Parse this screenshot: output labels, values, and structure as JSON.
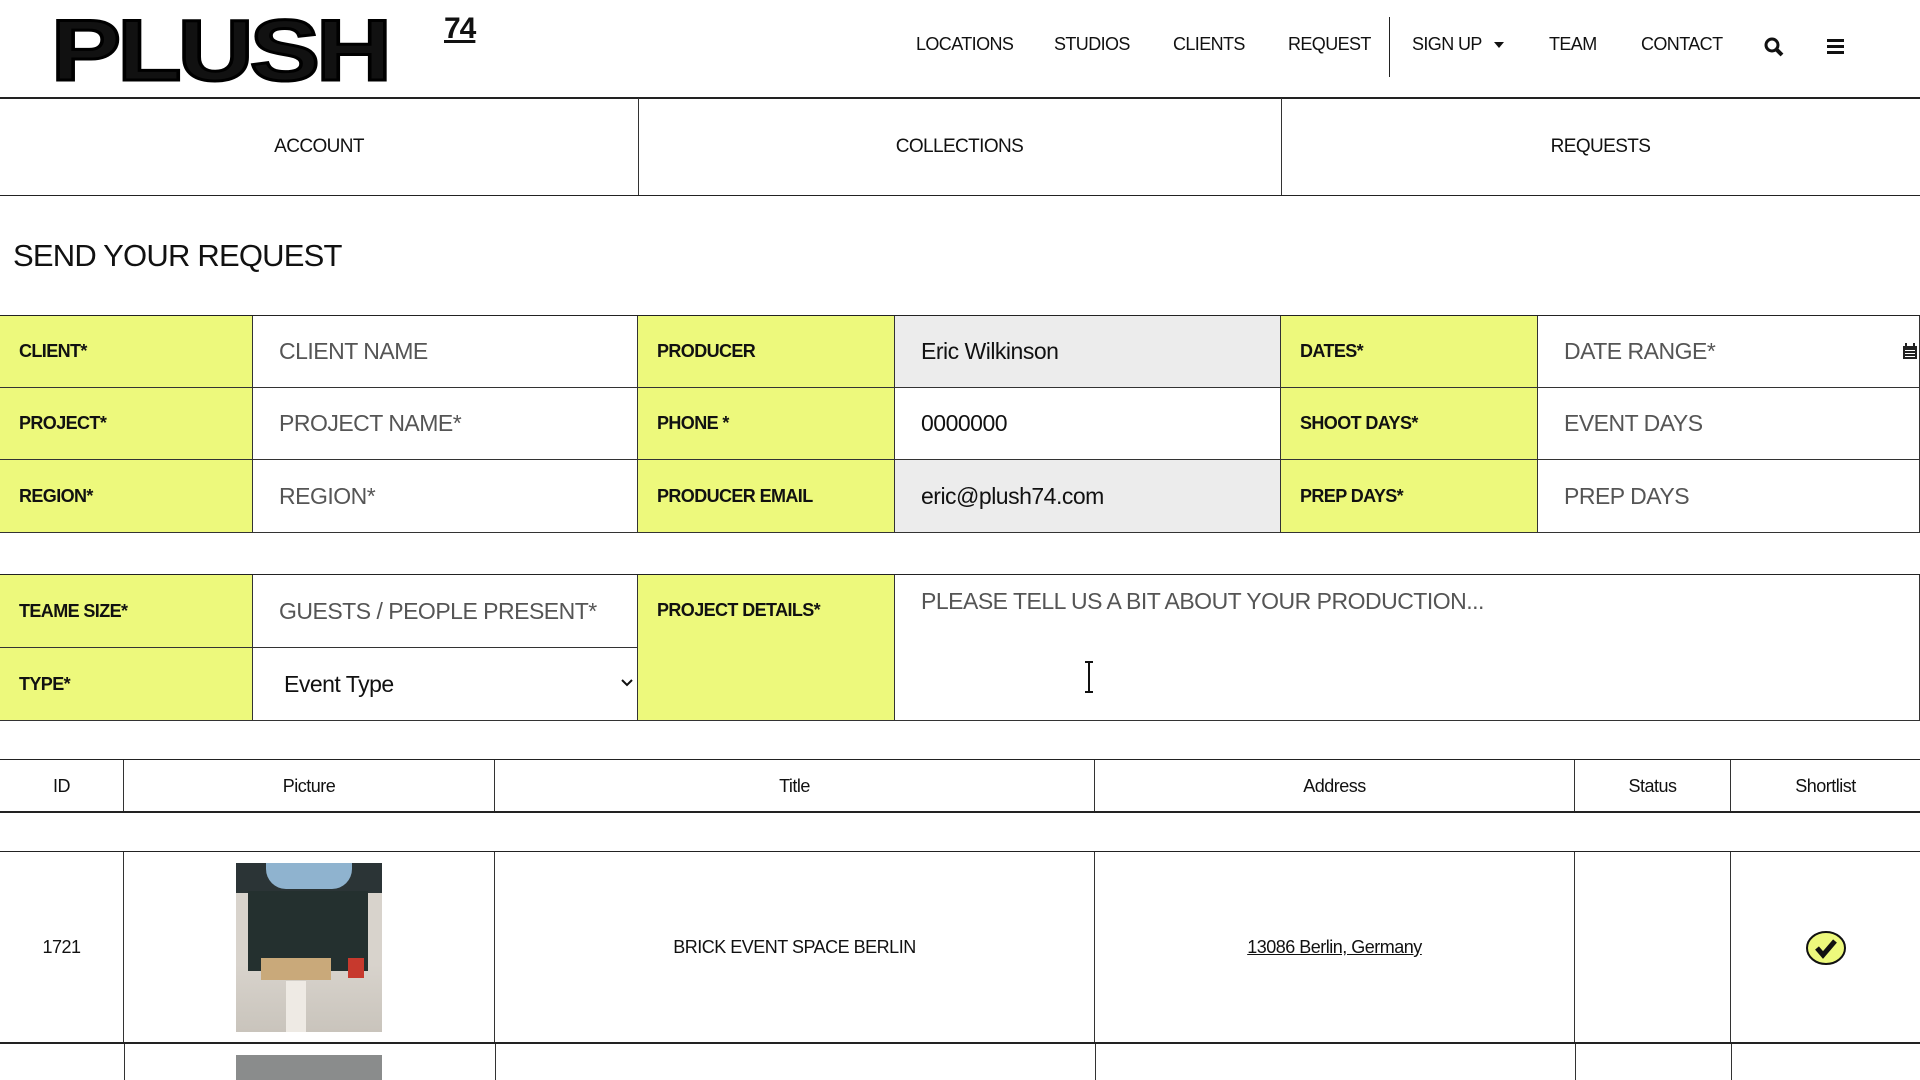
{
  "brand": {
    "name": "PLUSH",
    "sup": "74"
  },
  "nav": {
    "items": [
      "LOCATIONS",
      "STUDIOS",
      "CLIENTS",
      "REQUEST"
    ],
    "signup": "SIGN UP",
    "team": "TEAM",
    "contact": "CONTACT",
    "search_icon": "search-icon",
    "menu_icon": "hamburger-icon"
  },
  "tabs": [
    "ACCOUNT",
    "COLLECTIONS",
    "REQUESTS"
  ],
  "page_title": "SEND YOUR REQUEST",
  "form": {
    "client": {
      "label": "CLIENT*",
      "placeholder": "CLIENT NAME"
    },
    "project": {
      "label": "PROJECT*",
      "placeholder": "PROJECT NAME*"
    },
    "region": {
      "label": "REGION*",
      "placeholder": "REGION*"
    },
    "producer": {
      "label": "PRODUCER",
      "value": "Eric Wilkinson"
    },
    "phone": {
      "label": "PHONE *",
      "value": "0000000"
    },
    "producer_email": {
      "label": "PRODUCER EMAIL",
      "value": "eric@plush74.com"
    },
    "dates": {
      "label": "DATES*",
      "placeholder": "DATE RANGE*"
    },
    "shoot_days": {
      "label": "SHOOT DAYS*",
      "placeholder": "EVENT DAYS"
    },
    "prep_days": {
      "label": "PREP DAYS*",
      "placeholder": "PREP DAYS"
    },
    "team_size": {
      "label": "TEAME SIZE*",
      "placeholder": "GUESTS / PEOPLE PRESENT*"
    },
    "type": {
      "label": "TYPE*",
      "selected": "Event Type"
    },
    "details": {
      "label": "PROJECT DETAILS*",
      "placeholder": "PLEASE TELL US A BIT ABOUT YOUR PRODUCTION..."
    }
  },
  "table": {
    "headers": [
      "ID",
      "Picture",
      "Title",
      "Address",
      "Status",
      "Shortlist"
    ],
    "rows": [
      {
        "id": "1721",
        "title": "BRICK EVENT SPACE BERLIN",
        "address": "13086 Berlin, Germany",
        "status": "",
        "shortlisted": true
      }
    ]
  },
  "colors": {
    "accent": "#edf97c",
    "input_readonly": "#ececec"
  }
}
